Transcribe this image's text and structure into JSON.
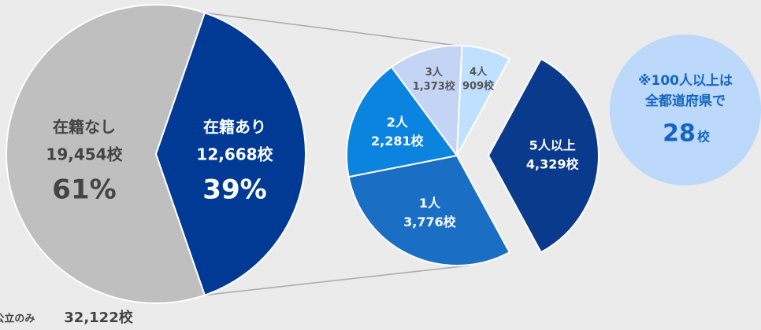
{
  "chart_data": [
    {
      "type": "pie",
      "categories": [
        "在籍なし",
        "在籍あり"
      ],
      "values": [
        19454,
        12668
      ],
      "value_labels": [
        "19,454校",
        "12,668校"
      ],
      "percents": [
        61,
        39
      ],
      "percent_labels": [
        "61%",
        "39%"
      ],
      "colors": [
        "#bfbfbf",
        "#003a94"
      ],
      "label_colors": [
        "#444444",
        "#ffffff"
      ],
      "footnote": "※公立のみ",
      "total": 32122,
      "total_label": "32,122校"
    },
    {
      "type": "pie",
      "categories": [
        "5人以上",
        "1人",
        "2人",
        "3人",
        "4人"
      ],
      "values": [
        4329,
        3776,
        2281,
        1373,
        909
      ],
      "value_labels": [
        "4,329校",
        "3,776校",
        "2,281校",
        "1,373校",
        "909校"
      ],
      "colors": [
        "#0a3a8c",
        "#1a6fc4",
        "#0b84e0",
        "#c4d4f5",
        "#bfe0ff"
      ],
      "label_colors": [
        "#ffffff",
        "#ffffff",
        "#ffffff",
        "#555555",
        "#555555"
      ],
      "explode": [
        true,
        false,
        false,
        false,
        false
      ],
      "annotation": [
        "※100人以上は",
        "全都道府県で"
      ],
      "annotation_value": 28,
      "annotation_unit": "校"
    }
  ]
}
